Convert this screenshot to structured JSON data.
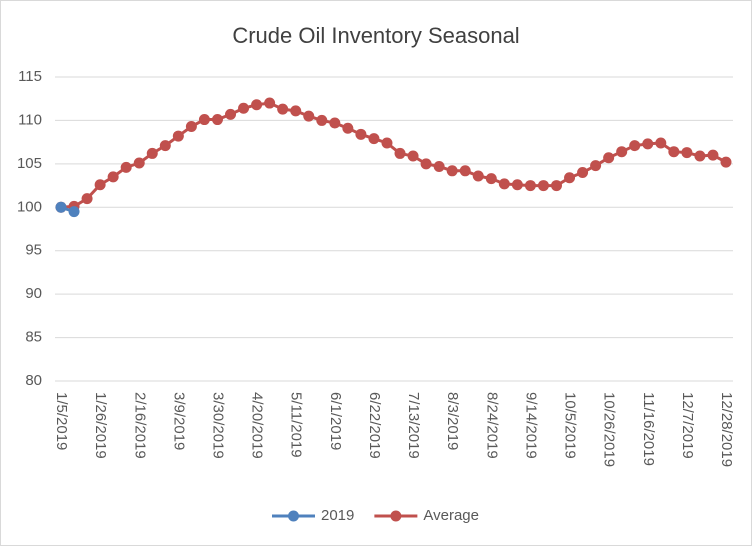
{
  "chart_data": {
    "type": "line",
    "title": "Crude Oil Inventory Seasonal",
    "categories": [
      "1/5/2019",
      null,
      null,
      "1/26/2019",
      null,
      null,
      "2/16/2019",
      null,
      null,
      "3/9/2019",
      null,
      null,
      "3/30/2019",
      null,
      null,
      "4/20/2019",
      null,
      null,
      "5/11/2019",
      null,
      null,
      "6/1/2019",
      null,
      null,
      "6/22/2019",
      null,
      null,
      "7/13/2019",
      null,
      null,
      "8/3/2019",
      null,
      null,
      "8/24/2019",
      null,
      null,
      "9/14/2019",
      null,
      null,
      "10/5/2019",
      null,
      null,
      "10/26/2019",
      null,
      null,
      "11/16/2019",
      null,
      null,
      "12/7/2019",
      null,
      null,
      "12/28/2019"
    ],
    "series": [
      {
        "name": "2019",
        "color": "#4f81bd",
        "values": [
          100,
          99.5,
          null,
          null,
          null,
          null,
          null,
          null,
          null,
          null,
          null,
          null,
          null,
          null,
          null,
          null,
          null,
          null,
          null,
          null,
          null,
          null,
          null,
          null,
          null,
          null,
          null,
          null,
          null,
          null,
          null,
          null,
          null,
          null,
          null,
          null,
          null,
          null,
          null,
          null,
          null,
          null,
          null,
          null,
          null,
          null,
          null,
          null,
          null,
          null,
          null,
          null
        ]
      },
      {
        "name": "Average",
        "color": "#c0504d",
        "values": [
          100,
          100.1,
          101.0,
          102.6,
          103.5,
          104.6,
          105.1,
          106.2,
          107.1,
          108.2,
          109.3,
          110.1,
          110.1,
          110.7,
          111.4,
          111.8,
          112.0,
          111.3,
          111.1,
          110.5,
          110.0,
          109.7,
          109.1,
          108.4,
          107.9,
          107.4,
          106.2,
          105.9,
          105.0,
          104.7,
          104.2,
          104.2,
          103.6,
          103.3,
          102.7,
          102.6,
          102.5,
          102.5,
          102.5,
          103.4,
          104.0,
          104.8,
          105.7,
          106.4,
          107.1,
          107.3,
          107.4,
          106.4,
          106.3,
          105.9,
          106.0,
          105.2
        ]
      }
    ],
    "ylim": [
      80,
      115
    ],
    "yticks": [
      80,
      85,
      90,
      95,
      100,
      105,
      110,
      115
    ],
    "grid": true,
    "legend": "bottom"
  }
}
